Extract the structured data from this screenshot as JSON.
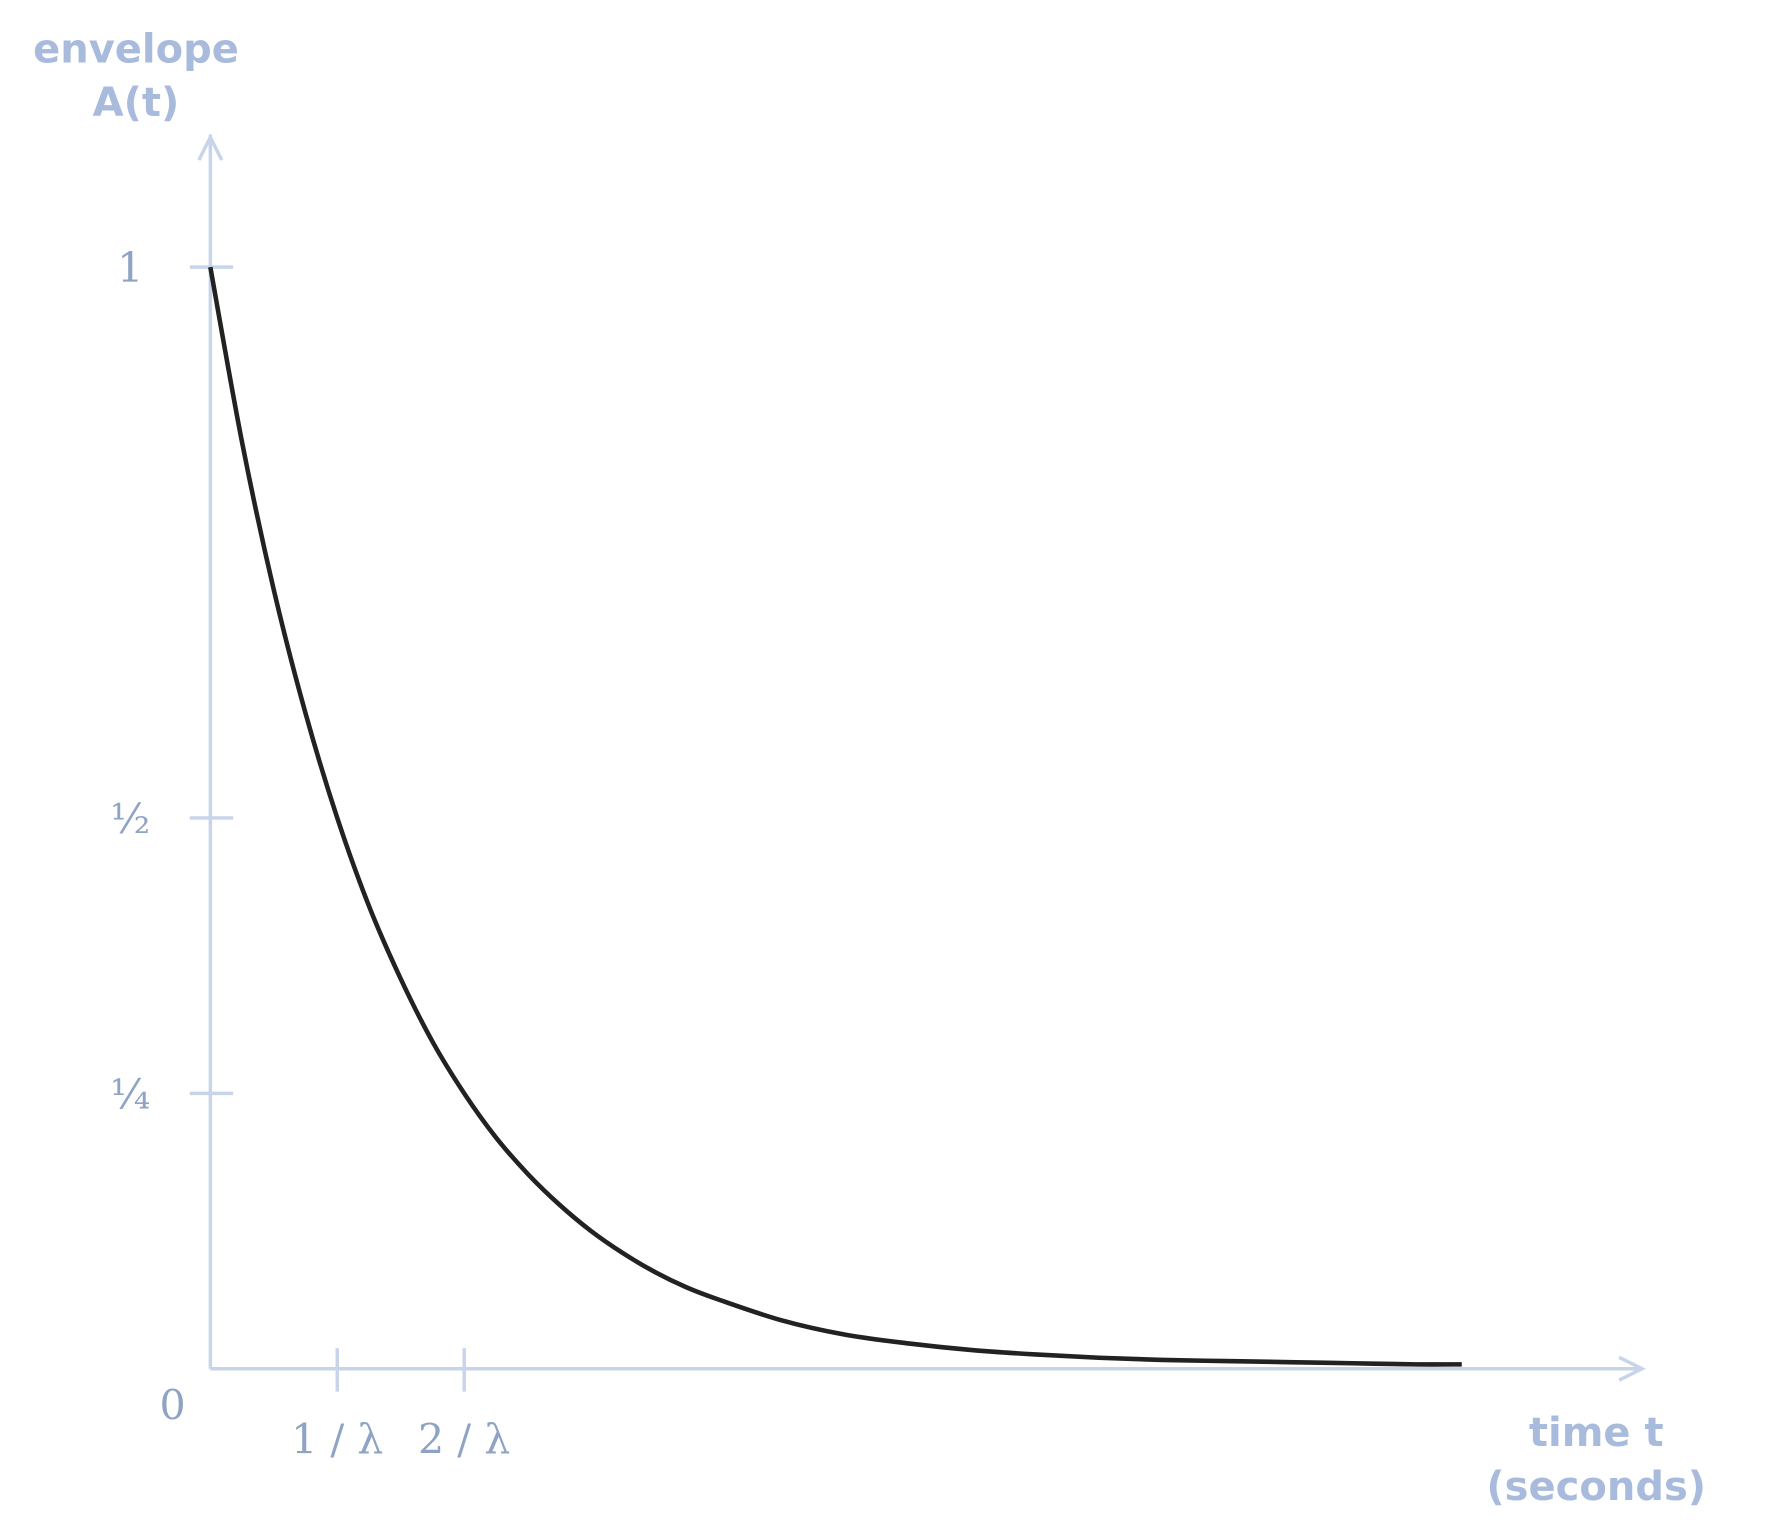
{
  "chart_data": {
    "type": "line",
    "y_label": [
      "envelope",
      "A(t)"
    ],
    "x_label": [
      "time t",
      "(seconds)"
    ],
    "x": [
      0,
      0.25,
      0.5,
      0.75,
      1,
      1.25,
      1.5,
      1.75,
      2,
      2.25,
      2.5,
      2.75,
      3,
      3.25,
      3.5,
      3.75,
      4,
      4.5,
      5,
      5.5,
      6,
      6.5,
      7,
      7.5,
      8,
      8.5,
      9,
      9.5,
      9.86
    ],
    "values": [
      1,
      0.841,
      0.707,
      0.595,
      0.5,
      0.42,
      0.354,
      0.297,
      0.25,
      0.21,
      0.177,
      0.149,
      0.125,
      0.105,
      0.088,
      0.074,
      0.063,
      0.044,
      0.031,
      0.023,
      0.017,
      0.013,
      0.01,
      0.008,
      0.007,
      0.006,
      0.005,
      0.004,
      0.004
    ],
    "color": "#222222",
    "axis_color": "#c8d4ea",
    "xlim": [
      0,
      11.28
    ],
    "ylim": [
      0,
      1.12
    ],
    "xticks": [
      {
        "value": 1,
        "label": "1 / λ"
      },
      {
        "value": 2,
        "label": "2 / λ"
      }
    ],
    "yticks": [
      0,
      {
        "value": 0.25,
        "label": "¼"
      },
      {
        "value": 0.5,
        "label": "½"
      },
      1
    ]
  }
}
